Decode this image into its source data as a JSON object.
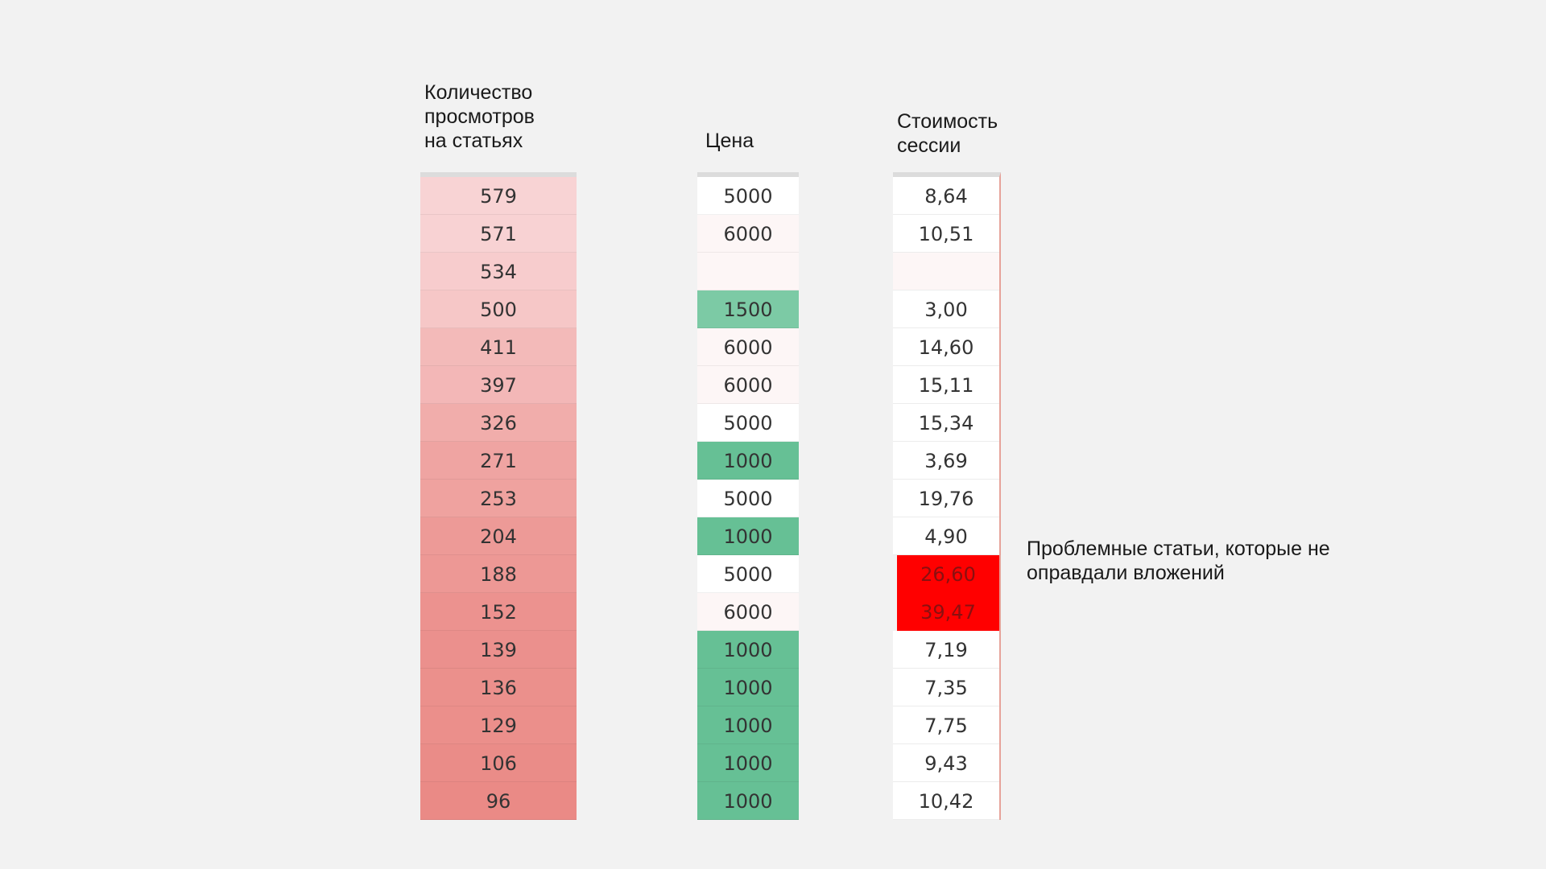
{
  "headers": {
    "views": "Количество\nпросмотров\nна статьях",
    "price": "Цена",
    "cost": "Стоимость\nсессии"
  },
  "views": [
    "579",
    "571",
    "534",
    "500",
    "411",
    "397",
    "326",
    "271",
    "253",
    "204",
    "188",
    "152",
    "139",
    "136",
    "129",
    "106",
    "96"
  ],
  "prices": [
    "5000",
    "6000",
    "",
    "1500",
    "6000",
    "6000",
    "5000",
    "1000",
    "5000",
    "1000",
    "5000",
    "6000",
    "1000",
    "1000",
    "1000",
    "1000",
    "1000"
  ],
  "costs": [
    "8,64",
    "10,51",
    "",
    "3,00",
    "14,60",
    "15,11",
    "15,34",
    "3,69",
    "19,76",
    "4,90",
    "26,60",
    "39,47",
    "7,19",
    "7,35",
    "7,75",
    "9,43",
    "10,42"
  ],
  "highlight_rows": [
    10,
    11
  ],
  "note": "Проблемные статьи, которые не\nоправдали вложений",
  "colors": {
    "views_light": "#f8d3d4",
    "views_dark": "#ea8a86",
    "price_green": "#66c095",
    "price_green_light": "#7ccaa5",
    "price_tint": "#fdf6f6",
    "problem_red": "#ff0000",
    "background": "#f2f2f2"
  }
}
